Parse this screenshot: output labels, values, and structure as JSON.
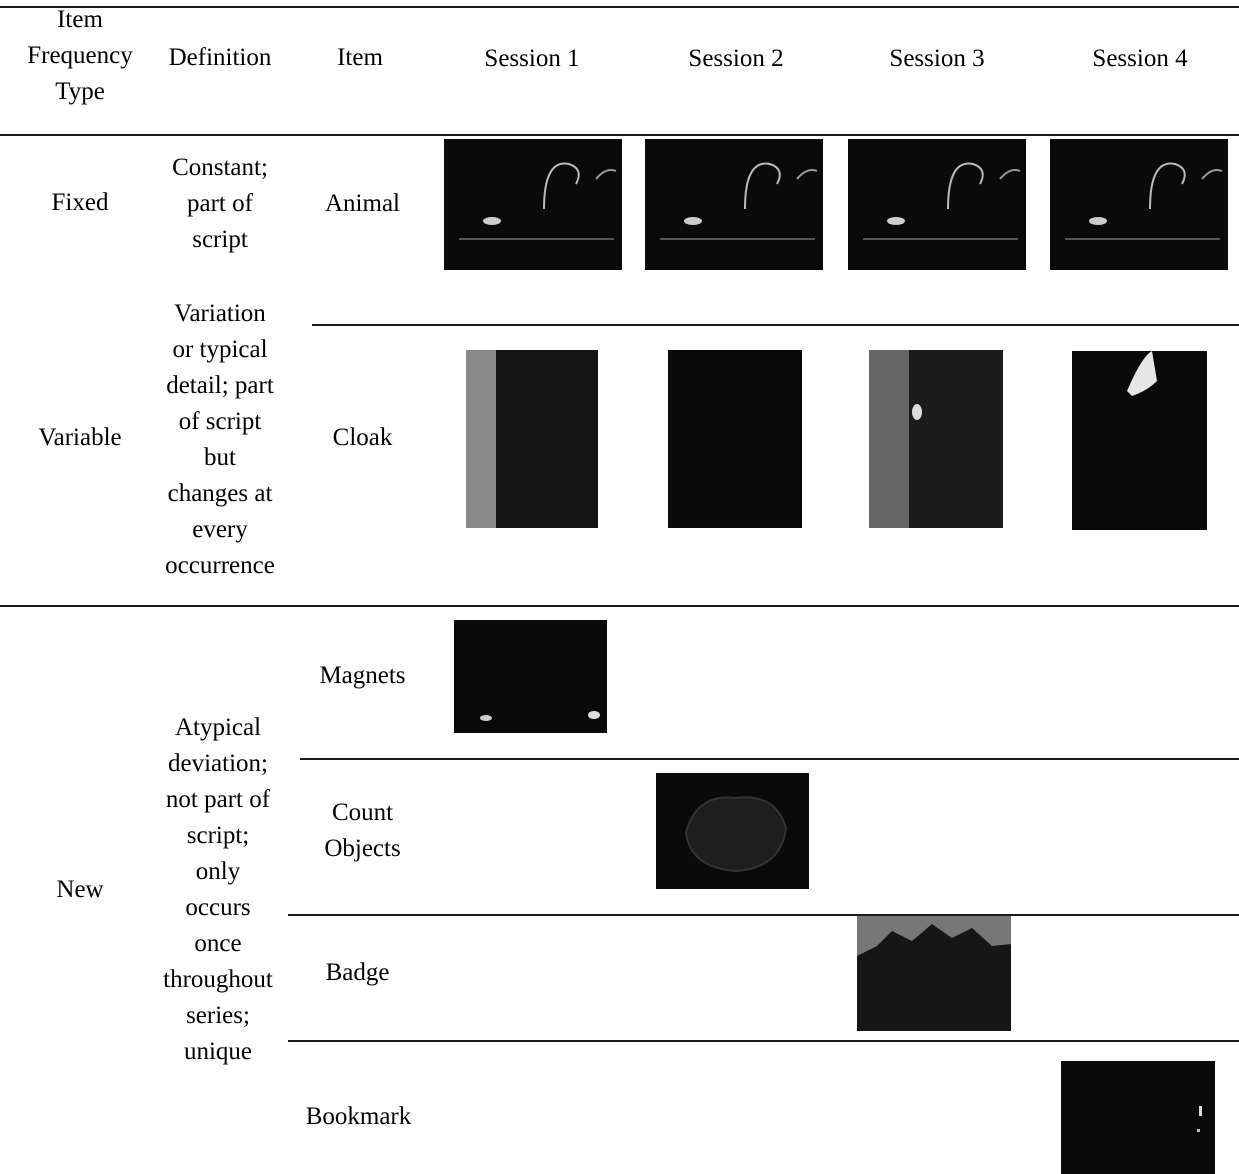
{
  "header": {
    "col_type": [
      "Item",
      "Frequency",
      "Type"
    ],
    "col_definition": "Definition",
    "col_item": "Item",
    "sessions": [
      "Session  1",
      "Session 2",
      "Session 3",
      "Session 4"
    ]
  },
  "rows": {
    "fixed": {
      "type": "Fixed",
      "definition": [
        "Constant;",
        "part of",
        "script"
      ],
      "item": "Animal"
    },
    "variable": {
      "type": "Variable",
      "definition": [
        "Variation",
        "or  typical",
        "detail; part",
        "of script",
        "but",
        "changes at",
        "every",
        "occurrence"
      ],
      "item": "Cloak"
    },
    "new": {
      "type": "New",
      "definition": [
        "Atypical",
        "deviation;",
        "not part of",
        "script;",
        "only",
        "occurs",
        "once",
        "throughout",
        "series;",
        "unique"
      ],
      "items": [
        "Magnets",
        "Count",
        "Objects",
        "Badge",
        "Bookmark"
      ]
    }
  },
  "colors": {
    "photo_background": "#0a0a0a",
    "rule": "#1a1a1a"
  }
}
